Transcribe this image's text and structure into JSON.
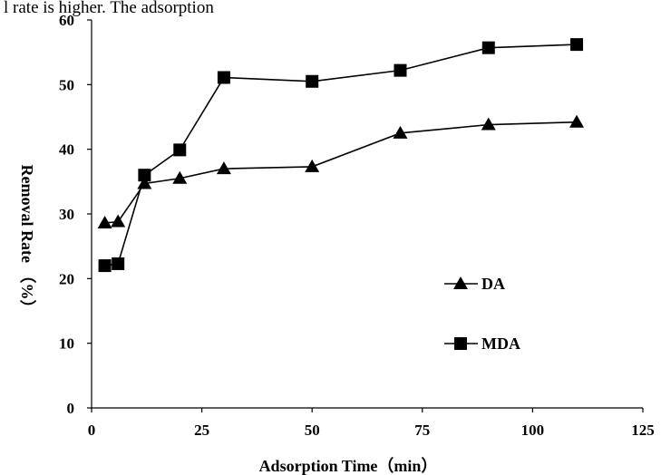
{
  "header_text": "l rate is higher. The adsorption",
  "chart_data": {
    "type": "line",
    "xlabel": "Adsorption Time（min）",
    "ylabel": "Removal Rate （%）",
    "xlim": [
      0,
      125
    ],
    "ylim": [
      0,
      60
    ],
    "xticks": [
      0,
      25,
      50,
      75,
      100,
      125
    ],
    "yticks": [
      0,
      10,
      20,
      30,
      40,
      50,
      60
    ],
    "grid": false,
    "legend_position": "lower-right",
    "series": [
      {
        "name": "DA",
        "marker": "triangle",
        "color": "#000000",
        "x": [
          3,
          6,
          12,
          20,
          30,
          50,
          70,
          90,
          110
        ],
        "y": [
          28.6,
          28.8,
          34.7,
          35.5,
          37.0,
          37.3,
          42.5,
          43.8,
          44.2
        ]
      },
      {
        "name": "MDA",
        "marker": "square",
        "color": "#000000",
        "x": [
          3,
          6,
          12,
          20,
          30,
          50,
          70,
          90,
          110
        ],
        "y": [
          22.0,
          22.3,
          36.0,
          39.9,
          51.1,
          50.5,
          52.2,
          55.7,
          56.2
        ]
      }
    ]
  }
}
